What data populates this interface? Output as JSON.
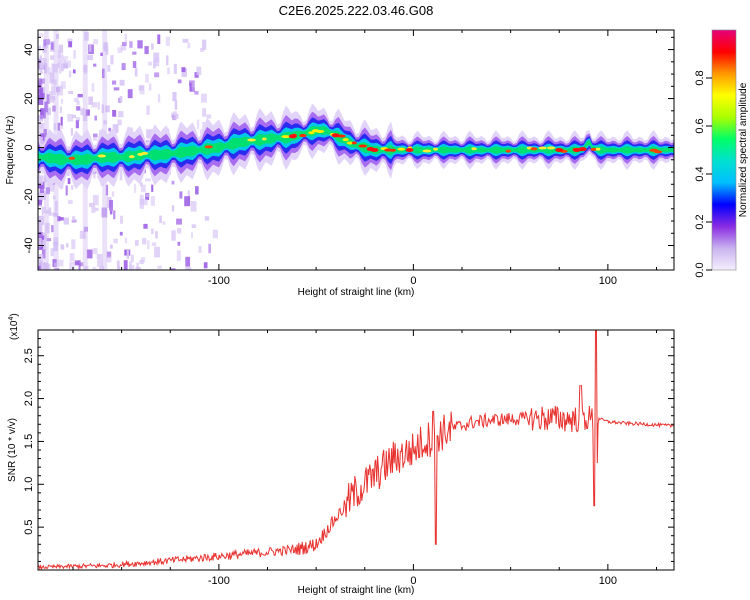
{
  "figure": {
    "title": "C2E6.2025.222.03.46.G08"
  },
  "chart_data": [
    {
      "type": "heatmap",
      "xlabel": "Height of straight line (km)",
      "ylabel": "Frequency (Hz)",
      "xlim": [
        -193,
        134
      ],
      "ylim": [
        -50,
        48
      ],
      "xticks": [
        -100,
        0,
        100
      ],
      "yticks": [
        -40,
        -20,
        0,
        20,
        40
      ],
      "ridge_x": [
        -190,
        -180,
        -170,
        -160,
        -150,
        -140,
        -130,
        -120,
        -110,
        -100,
        -90,
        -80,
        -70,
        -65,
        -55,
        -50,
        -45,
        -40,
        -35,
        -30,
        -25,
        -20,
        -15,
        -10,
        -5,
        0,
        10,
        20,
        30,
        40,
        50,
        60,
        70,
        80,
        85,
        88,
        90,
        92,
        95,
        100,
        110,
        120,
        134
      ],
      "ridge_y": [
        -4,
        -5,
        -5,
        -4,
        -4,
        -3,
        -3,
        -2,
        -1,
        0,
        2,
        3,
        4,
        4,
        6,
        7,
        7,
        5,
        3,
        1,
        0,
        -1,
        -1,
        -1,
        -1,
        -1,
        -1,
        -1,
        -1,
        -1,
        -1,
        -1,
        -1,
        -1,
        -1,
        -0.5,
        3,
        0,
        -1,
        -1,
        -1,
        -1,
        -1
      ],
      "colorbar": {
        "label": "Normalized spectral amplitude",
        "ticks": [
          "0.0",
          "0.2",
          "0.4",
          "0.6",
          "0.8"
        ],
        "range": [
          0,
          1
        ],
        "colors": [
          "#f5f0fc",
          "#c9b3f0",
          "#8a2be2",
          "#0000ff",
          "#00bfff",
          "#00e0d0",
          "#00ff66",
          "#aaff00",
          "#ffff00",
          "#ff9900",
          "#ff0000",
          "#e6007a"
        ]
      }
    },
    {
      "type": "line",
      "xlabel": "Height of straight line (km)",
      "ylabel": "SNR (10 * v/v)",
      "scale_label": "(x10",
      "scale_exp": "4",
      "xlim": [
        -193,
        134
      ],
      "ylim": [
        0,
        2.8
      ],
      "xticks": [
        -100,
        0,
        100
      ],
      "yticks": [
        "0.5",
        "1.0",
        "1.5",
        "2.0",
        "2.5"
      ],
      "color": "#e8322f",
      "series": [
        {
          "x": [
            -193,
            -180,
            -160,
            -140,
            -120,
            -100,
            -90,
            -80,
            -70,
            -60,
            -50,
            -45,
            -40,
            -35,
            -30,
            -25,
            -20,
            -15,
            -10,
            -5,
            0,
            5,
            10,
            15,
            20,
            30,
            40,
            50,
            60,
            70,
            80,
            85,
            90,
            93,
            94,
            95,
            97,
            100,
            110,
            120,
            134
          ],
          "y": [
            0.03,
            0.04,
            0.05,
            0.08,
            0.12,
            0.16,
            0.18,
            0.2,
            0.22,
            0.24,
            0.3,
            0.45,
            0.6,
            0.75,
            0.9,
            1.0,
            1.1,
            1.2,
            1.3,
            1.35,
            1.4,
            1.5,
            1.55,
            1.6,
            1.65,
            1.72,
            1.75,
            1.76,
            1.77,
            1.77,
            1.76,
            1.76,
            1.77,
            1.75,
            0.8,
            1.78,
            1.75,
            1.73,
            1.71,
            1.7,
            1.68
          ]
        }
      ]
    }
  ]
}
